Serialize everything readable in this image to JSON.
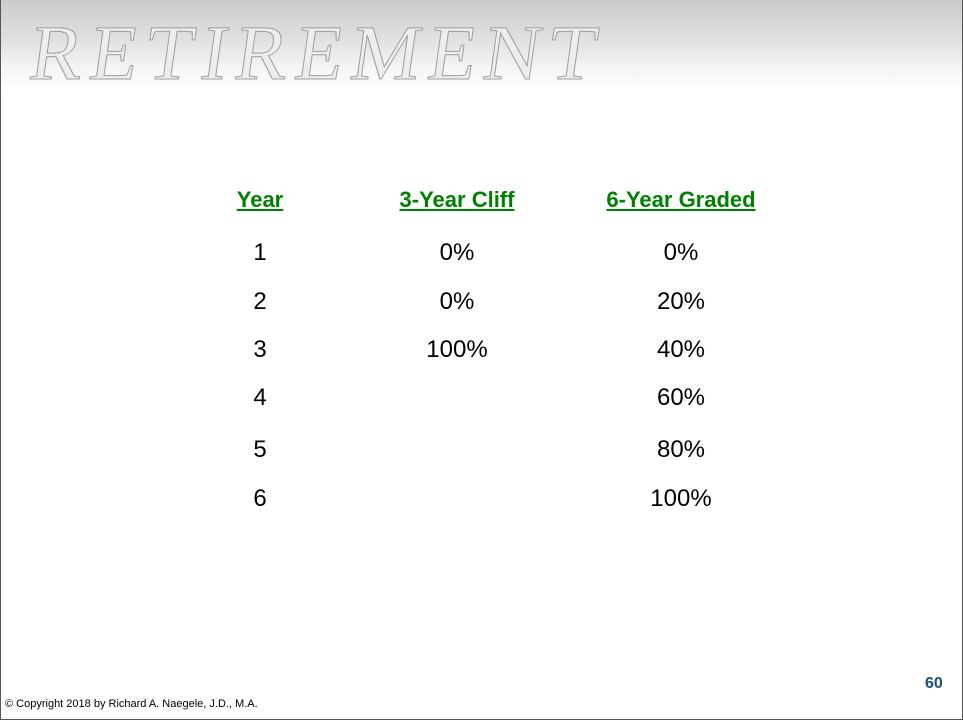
{
  "banner": {
    "text": "RETIREMENT"
  },
  "table": {
    "headers": [
      "Year",
      "3-Year Cliff",
      "6-Year Graded"
    ],
    "rows": [
      [
        "1",
        "0%",
        "0%"
      ],
      [
        "2",
        "0%",
        "20%"
      ],
      [
        "3",
        "100%",
        "40%"
      ],
      [
        "4",
        null,
        "60%"
      ],
      [
        "5",
        null,
        "80%"
      ],
      [
        "6",
        null,
        "100%"
      ]
    ]
  },
  "footer": {
    "copyright": "© Copyright 2018 by Richard A. Naegele, J.D., M.A.",
    "page_number": "60"
  }
}
